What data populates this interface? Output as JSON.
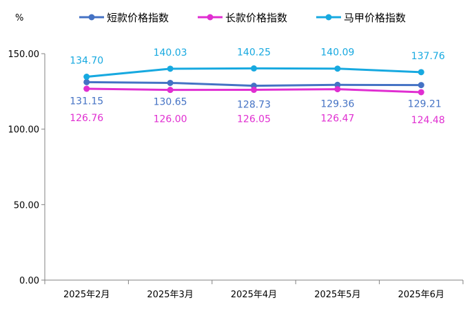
{
  "chart_data": {
    "type": "line",
    "ylabel": "%",
    "categories": [
      "2025年2月",
      "2025年3月",
      "2025年4月",
      "2025年5月",
      "2025年6月"
    ],
    "ylim": [
      0,
      150
    ],
    "yticks": [
      "0.00",
      "50.00",
      "100.00",
      "150.00"
    ],
    "legend_position": "top",
    "grid": false,
    "series": [
      {
        "name": "短款价格指数",
        "color": "#4472C4",
        "values": [
          131.15,
          130.65,
          128.73,
          129.36,
          129.21
        ],
        "labels": [
          "131.15",
          "130.65",
          "128.73",
          "129.36",
          "129.21"
        ]
      },
      {
        "name": "长款价格指数",
        "color": "#E02ED1",
        "values": [
          126.76,
          126.0,
          126.05,
          126.47,
          124.48
        ],
        "labels": [
          "126.76",
          "126.00",
          "126.05",
          "126.47",
          "124.48"
        ]
      },
      {
        "name": "马甲价格指数",
        "color": "#17A9E0",
        "values": [
          134.7,
          140.03,
          140.25,
          140.09,
          137.76
        ],
        "labels": [
          "134.70",
          "140.03",
          "140.25",
          "140.09",
          "137.76"
        ]
      }
    ]
  }
}
